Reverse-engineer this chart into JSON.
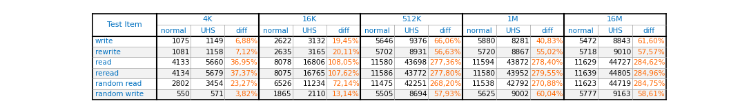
{
  "title_col": "Test Item",
  "group_headers": [
    "4K",
    "16K",
    "512K",
    "1M",
    "16M"
  ],
  "sub_headers": [
    "normal",
    "UHS",
    "diff"
  ],
  "rows": [
    {
      "label": "write",
      "values": [
        1075,
        1149,
        "6,88%",
        2622,
        3132,
        "19,45%",
        5646,
        9376,
        "66,06%",
        5880,
        8281,
        "40,83%",
        5472,
        8843,
        "61,60%"
      ]
    },
    {
      "label": "rewrite",
      "values": [
        1081,
        1158,
        "7,12%",
        2635,
        3165,
        "20,11%",
        5702,
        8931,
        "56,63%",
        5720,
        8867,
        "55,02%",
        5718,
        9010,
        "57,57%"
      ]
    },
    {
      "label": "read",
      "values": [
        4133,
        5660,
        "36,95%",
        8078,
        16806,
        "108,05%",
        11580,
        43698,
        "277,36%",
        11594,
        43872,
        "278,40%",
        11629,
        44727,
        "284,62%"
      ]
    },
    {
      "label": "reread",
      "values": [
        4134,
        5679,
        "37,37%",
        8075,
        16765,
        "107,62%",
        11586,
        43772,
        "277,80%",
        11580,
        43952,
        "279,55%",
        11639,
        44805,
        "284,96%"
      ]
    },
    {
      "label": "random read",
      "values": [
        2802,
        3454,
        "23,27%",
        6526,
        11234,
        "72,14%",
        11475,
        42251,
        "268,20%",
        11538,
        42792,
        "270,88%",
        11623,
        44719,
        "284,75%"
      ]
    },
    {
      "label": "random write",
      "values": [
        550,
        571,
        "3,82%",
        1865,
        2110,
        "13,14%",
        5505,
        8694,
        "57,93%",
        5625,
        9002,
        "60,04%",
        5777,
        9163,
        "58,61%"
      ]
    }
  ],
  "header_text_color": "#0070C0",
  "row_bg_odd": "#FFFFFF",
  "row_bg_even": "#F2F2F2",
  "label_color": "#0070C0",
  "number_color": "#000000",
  "diff_color": "#FF6600",
  "border_color": "#A0A0A0",
  "thick_border_color": "#000000",
  "figwidth": 10.72,
  "figheight": 1.63,
  "dpi": 100
}
